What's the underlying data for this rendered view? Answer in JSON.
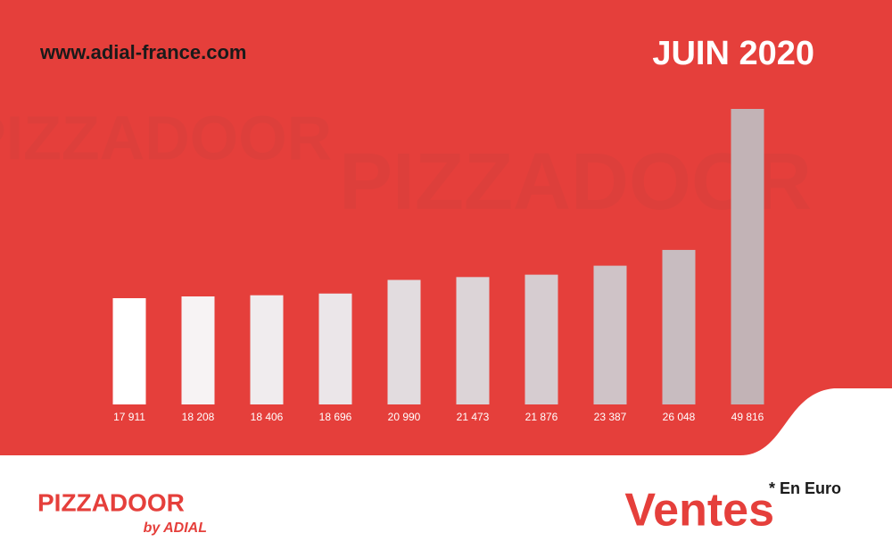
{
  "header": {
    "url": "www.adial-france.com",
    "period": "JUIN 2020"
  },
  "chart_data": {
    "type": "bar",
    "values": [
      17911,
      18208,
      18406,
      18696,
      20990,
      21473,
      21876,
      23387,
      26048,
      49816
    ],
    "value_labels": [
      "17 911",
      "18 208",
      "18 406",
      "18 696",
      "20 990",
      "21 473",
      "21 876",
      "23 387",
      "26 048",
      "49 816"
    ],
    "colors": [
      "#ffffff",
      "#f7f3f4",
      "#f0ecee",
      "#ebe6e9",
      "#e2dcdf",
      "#dcd4d7",
      "#d6ccd0",
      "#cfc3c7",
      "#c8bcc0",
      "#c2b3b6"
    ]
  },
  "footer": {
    "title": "Ventes",
    "note": "* En Euro",
    "brand": "PIZZADOOR",
    "brand_tagline": "by ADIAL"
  }
}
